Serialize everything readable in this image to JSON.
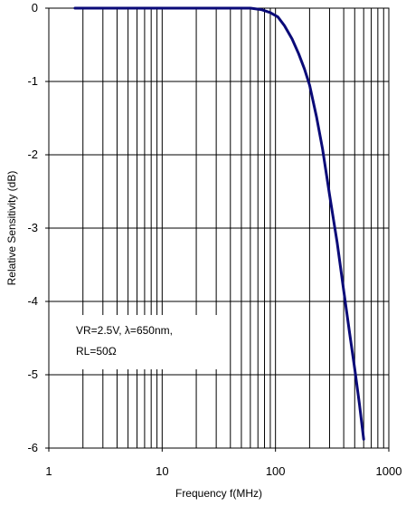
{
  "chart_data": {
    "type": "line",
    "title": "",
    "xlabel": "Frequency f(MHz)",
    "ylabel": "Relative Sensitivity (dB)",
    "x_scale": "log",
    "xlim": [
      1,
      1000
    ],
    "ylim": [
      -6,
      0
    ],
    "grid": true,
    "x_ticks": [
      1,
      10,
      100,
      1000
    ],
    "x_tick_labels": [
      "1",
      "10",
      "100",
      "1000"
    ],
    "y_ticks": [
      0,
      -1,
      -2,
      -3,
      -4,
      -5,
      -6
    ],
    "y_tick_labels": [
      "0",
      "-1",
      "-2",
      "-3",
      "-4",
      "-5",
      "-6"
    ],
    "annotation_lines": [
      "VR=2.5V, λ=650nm,",
      "RL=50Ω"
    ],
    "series": [
      {
        "color": "#0a0a78",
        "x": [
          1.7,
          10,
          30,
          60,
          75,
          90,
          105,
          120,
          140,
          160,
          180,
          200,
          230,
          260,
          300,
          350,
          400,
          450,
          500,
          550,
          600
        ],
        "y": [
          0,
          0,
          0,
          0,
          -0.02,
          -0.06,
          -0.12,
          -0.24,
          -0.42,
          -0.62,
          -0.83,
          -1.05,
          -1.48,
          -1.92,
          -2.55,
          -3.2,
          -3.85,
          -4.42,
          -4.92,
          -5.4,
          -5.88
        ]
      }
    ],
    "line_color": "#0a0a78",
    "grid_color": "#000000"
  }
}
